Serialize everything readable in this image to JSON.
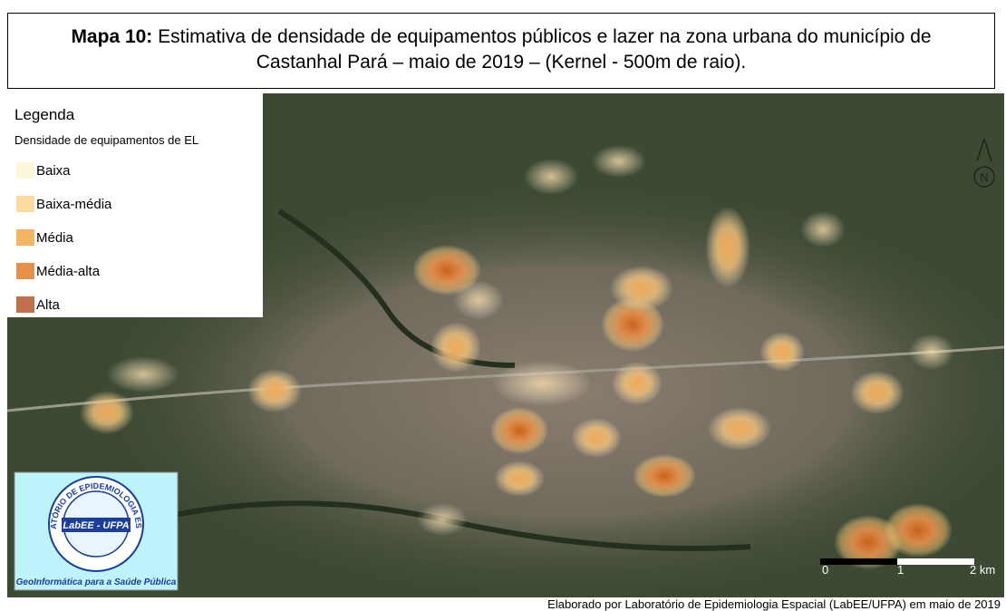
{
  "header": {
    "label": "Mapa 10:",
    "title": "Estimativa de densidade de equipamentos públicos e lazer na zona urbana do município de Castanhal Pará – maio de 2019 – (Kernel - 500m de raio)."
  },
  "legend": {
    "title": "Legenda",
    "subtitle": "Densidade de equipamentos de EL",
    "items": [
      {
        "label": "Baixa",
        "color": "#fdf6d8"
      },
      {
        "label": "Baixa-média",
        "color": "#f9dba0"
      },
      {
        "label": "Média",
        "color": "#f4b460"
      },
      {
        "label": "Média-alta",
        "color": "#e8904a"
      },
      {
        "label": "Alta",
        "color": "#c0704a"
      }
    ]
  },
  "north_arrow": {
    "label": "N"
  },
  "scale_bar": {
    "labels": [
      "0",
      "1",
      "2 km"
    ]
  },
  "logo": {
    "ring_text": "LABORATÓRIO DE EPIDEMIOLOGIA ESPACIAL",
    "name": "LabEE - UFPA",
    "caption": "GeoInformática para a Saúde Pública"
  },
  "footer": {
    "credit": "Elaborado por Laboratório de Epidemiologia Espacial (LabEE/UFPA) em maio de 2019"
  }
}
